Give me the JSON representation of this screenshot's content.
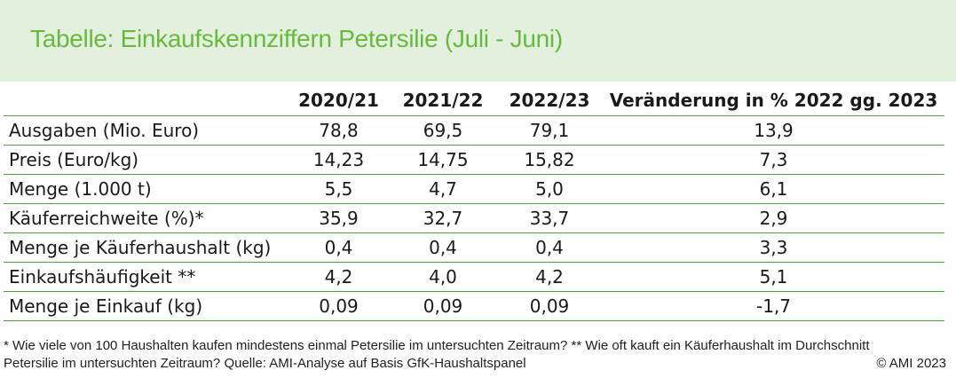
{
  "title": "Tabelle: Einkaufskennziffern Petersilie (Juli - Juni)",
  "table": {
    "headers": [
      "",
      "2020/21",
      "2021/22",
      "2022/23",
      "Veränderung in % 2022 gg. 2023"
    ],
    "rows": [
      [
        "Ausgaben (Mio. Euro)",
        "78,8",
        "69,5",
        "79,1",
        "13,9"
      ],
      [
        "Preis (Euro/kg)",
        "14,23",
        "14,75",
        "15,82",
        "7,3"
      ],
      [
        "Menge (1.000 t)",
        "5,5",
        "4,7",
        "5,0",
        "6,1"
      ],
      [
        "Käuferreichweite (%)*",
        "35,9",
        "32,7",
        "33,7",
        "2,9"
      ],
      [
        "Menge je Käuferhaushalt (kg)",
        "0,4",
        "0,4",
        "0,4",
        "3,3"
      ],
      [
        "Einkaufshäufigkeit **",
        "4,2",
        "4,0",
        "4,2",
        "5,1"
      ],
      [
        "Menge je Einkauf (kg)",
        "0,09",
        "0,09",
        "0,09",
        "-1,7"
      ]
    ]
  },
  "footnote": {
    "line1": "* Wie viele von 100 Haushalten kaufen mindestens einmal Petersilie im untersuchten Zeitraum? ** Wie oft kauft ein Käuferhaushalt im Durchschnitt",
    "line2": "Petersilie im untersuchten Zeitraum? Quelle: AMI-Analyse auf Basis GfK-Haushaltspanel",
    "copyright": "© AMI 2023"
  },
  "colors": {
    "title": "#66bb3d",
    "header_bg": "#e3f0de",
    "rule": "#4aa33b"
  }
}
